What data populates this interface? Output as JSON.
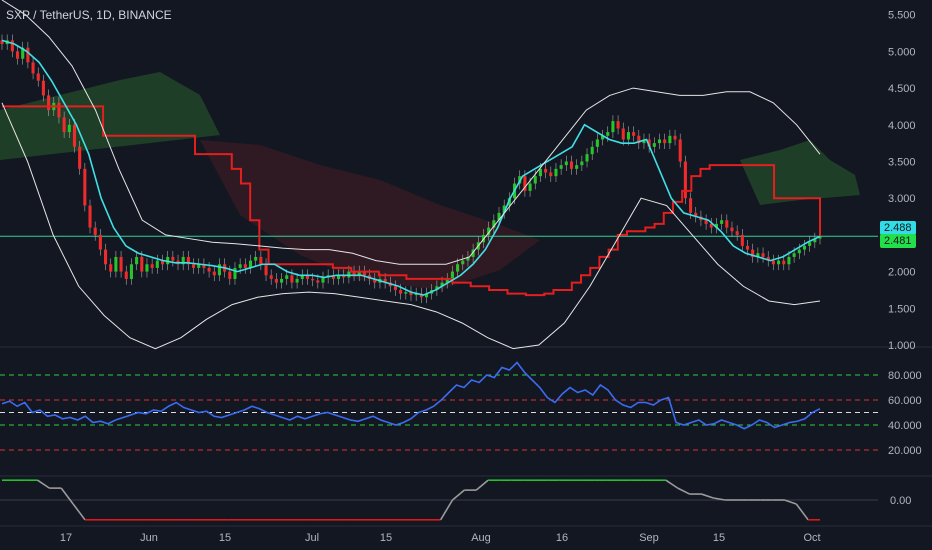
{
  "header": {
    "symbol_title": "SXP / TetherUS, 1D, BINANCE"
  },
  "colors": {
    "background": "#131722",
    "grid": "#1e222d",
    "up": "#26c52a",
    "down": "#ef2b2b",
    "kijun": "#e31f1f",
    "tenkan": "#3fe0e6",
    "bands": "#e6e6e6",
    "rsi": "#3b6bf0",
    "cloud_green": "#2f6e2f",
    "cloud_red": "#5a1d22",
    "osc_green": "#22c22a",
    "osc_red": "#e01818",
    "osc_gray": "#9a9a9a",
    "level_green": "#2ecc40",
    "level_red": "#e03030",
    "level_white": "#dddddd",
    "price_line": "#2fd39a",
    "badge_cyan": "#33dde6",
    "badge_green": "#22e04a"
  },
  "x_axis": {
    "labels": [
      "17",
      "Jun",
      "15",
      "Jul",
      "15",
      "Aug",
      "16",
      "Sep",
      "15",
      "Oct"
    ]
  },
  "price_axis": {
    "labels": [
      "5.500",
      "5.000",
      "4.500",
      "4.000",
      "3.500",
      "3.000",
      "2.000",
      "1.500",
      "1.000"
    ]
  },
  "rsi_axis": {
    "labels": [
      "80.000",
      "60.000",
      "40.000",
      "20.000"
    ]
  },
  "osc_axis": {
    "labels": [
      "0.00"
    ]
  },
  "price_badges": {
    "upper": "2.488",
    "lower": "2.481"
  },
  "chart_data": [
    {
      "type": "candlestick",
      "title": "SXP / TetherUS, 1D, BINANCE",
      "ylim": [
        1.0,
        5.7
      ],
      "current_price": 2.481,
      "marker_price": 2.488,
      "series": [
        {
          "name": "",
          "kind": "ohlc-close",
          "values": [
            5.1,
            5.15,
            5.0,
            4.9,
            5.05,
            4.85,
            4.7,
            4.6,
            4.4,
            4.2,
            4.3,
            4.1,
            3.9,
            4.0,
            3.7,
            3.4,
            2.9,
            2.6,
            2.5,
            2.3,
            2.1,
            2.0,
            2.2,
            2.0,
            1.9,
            2.1,
            2.2,
            2.0,
            2.1,
            2.05,
            2.15,
            2.1,
            2.2,
            2.15,
            2.1,
            2.2,
            2.1,
            2.05,
            2.1,
            2.05,
            2.0,
            1.95,
            2.1,
            2.0,
            1.9,
            2.05,
            2.1,
            2.05,
            2.15,
            2.2,
            2.1,
            1.95,
            1.9,
            1.85,
            1.9,
            1.95,
            1.85,
            1.9,
            1.95,
            1.9,
            1.88,
            1.85,
            1.92,
            1.95,
            1.9,
            1.95,
            1.92,
            2.0,
            1.95,
            2.0,
            1.95,
            1.9,
            1.85,
            1.9,
            1.85,
            1.8,
            1.75,
            1.7,
            1.72,
            1.68,
            1.7,
            1.65,
            1.7,
            1.75,
            1.8,
            1.85,
            1.9,
            2.0,
            2.1,
            2.15,
            2.2,
            2.3,
            2.4,
            2.5,
            2.6,
            2.7,
            2.8,
            2.9,
            3.0,
            3.2,
            3.3,
            3.1,
            3.2,
            3.3,
            3.4,
            3.35,
            3.3,
            3.4,
            3.45,
            3.5,
            3.4,
            3.45,
            3.5,
            3.6,
            3.7,
            3.8,
            3.85,
            3.9,
            4.05,
            3.95,
            3.8,
            3.9,
            3.85,
            3.75,
            3.8,
            3.7,
            3.75,
            3.8,
            3.75,
            3.85,
            3.8,
            3.5,
            3.0,
            2.8,
            2.75,
            2.7,
            2.65,
            2.6,
            2.65,
            2.7,
            2.6,
            2.55,
            2.5,
            2.35,
            2.3,
            2.2,
            2.25,
            2.2,
            2.15,
            2.1,
            2.15,
            2.1,
            2.2,
            2.25,
            2.3,
            2.35,
            2.4,
            2.45,
            2.481
          ]
        },
        {
          "name": "",
          "kind": "kijun",
          "values": [
            4.25,
            4.25,
            4.25,
            4.25,
            4.25,
            4.25,
            4.25,
            4.25,
            4.25,
            4.25,
            4.25,
            3.85,
            3.85,
            3.85,
            3.85,
            3.85,
            3.85,
            3.85,
            3.85,
            3.85,
            3.85,
            3.6,
            3.6,
            3.6,
            3.6,
            3.4,
            3.2,
            2.7,
            2.3,
            2.1,
            2.1,
            2.1,
            2.1,
            2.1,
            2.1,
            2.1,
            2.05,
            2.05,
            2.0,
            2.0,
            2.0,
            1.95,
            1.95,
            1.95,
            1.9,
            1.9,
            1.9,
            1.9,
            1.9,
            1.85,
            1.85,
            1.8,
            1.8,
            1.75,
            1.75,
            1.7,
            1.7,
            1.68,
            1.68,
            1.7,
            1.75,
            1.75,
            1.85,
            1.95,
            2.05,
            2.2,
            2.3,
            2.5,
            2.55,
            2.55,
            2.6,
            2.65,
            2.8,
            2.95,
            3.1,
            3.3,
            3.4,
            3.45,
            3.45,
            3.45,
            3.45,
            3.45,
            3.45,
            3.45,
            3.0,
            3.0,
            3.0,
            3.0,
            3.0,
            2.481
          ]
        },
        {
          "name": "",
          "kind": "tenkan",
          "values": [
            5.15,
            5.1,
            5.0,
            4.85,
            4.6,
            4.3,
            4.0,
            3.6,
            3.0,
            2.6,
            2.35,
            2.25,
            2.2,
            2.15,
            2.12,
            2.12,
            2.1,
            2.08,
            2.05,
            2.0,
            2.05,
            2.1,
            2.1,
            2.0,
            1.95,
            1.95,
            1.92,
            1.95,
            1.95,
            1.95,
            1.9,
            1.85,
            1.8,
            1.72,
            1.68,
            1.75,
            1.85,
            1.95,
            2.1,
            2.3,
            2.6,
            3.0,
            3.3,
            3.4,
            3.5,
            3.6,
            3.7,
            4.0,
            3.9,
            3.8,
            3.75,
            3.75,
            3.8,
            3.4,
            3.0,
            2.8,
            2.75,
            2.7,
            2.55,
            2.35,
            2.25,
            2.2,
            2.15,
            2.2,
            2.3,
            2.4,
            2.481
          ]
        },
        {
          "name": "",
          "kind": "bollinger-upper",
          "values": [
            5.7,
            5.5,
            5.2,
            4.8,
            4.2,
            3.4,
            2.7,
            2.5,
            2.45,
            2.4,
            2.38,
            2.35,
            2.32,
            2.3,
            2.3,
            2.25,
            2.15,
            2.1,
            2.1,
            2.1,
            2.2,
            2.6,
            3.0,
            3.4,
            3.8,
            4.2,
            4.4,
            4.5,
            4.45,
            4.4,
            4.4,
            4.45,
            4.45,
            4.3,
            4.0,
            3.6
          ]
        },
        {
          "name": "",
          "kind": "bollinger-lower",
          "values": [
            4.3,
            3.5,
            2.5,
            1.8,
            1.4,
            1.1,
            0.95,
            1.1,
            1.35,
            1.55,
            1.65,
            1.7,
            1.72,
            1.7,
            1.65,
            1.6,
            1.55,
            1.45,
            1.3,
            1.1,
            0.95,
            1.0,
            1.3,
            1.8,
            2.4,
            3.0,
            2.9,
            2.5,
            2.1,
            1.8,
            1.6,
            1.55,
            1.6
          ]
        }
      ]
    },
    {
      "type": "line",
      "ylim": [
        0,
        100
      ],
      "levels": [
        80,
        60,
        50,
        40,
        20
      ],
      "series": [
        {
          "name": "",
          "values": [
            57,
            59,
            55,
            58,
            50,
            52,
            47,
            48,
            45,
            46,
            44,
            47,
            42,
            43,
            41,
            44,
            46,
            48,
            50,
            49,
            52,
            51,
            55,
            58,
            54,
            52,
            50,
            51,
            47,
            46,
            48,
            50,
            52,
            55,
            53,
            50,
            48,
            46,
            44,
            47,
            45,
            47,
            49,
            50,
            48,
            46,
            44,
            43,
            45,
            47,
            44,
            42,
            40,
            42,
            45,
            50,
            52,
            55,
            60,
            66,
            72,
            70,
            76,
            74,
            80,
            78,
            86,
            84,
            90,
            82,
            76,
            70,
            62,
            58,
            65,
            70,
            66,
            68,
            64,
            72,
            68,
            60,
            56,
            54,
            58,
            58,
            56,
            60,
            62,
            42,
            40,
            42,
            44,
            40,
            41,
            44,
            42,
            40,
            37,
            40,
            44,
            42,
            38,
            40,
            42,
            43,
            45,
            50,
            53
          ]
        }
      ]
    },
    {
      "type": "line",
      "ylim": [
        -1,
        1
      ],
      "levels": [
        0
      ],
      "series": [
        {
          "name": "",
          "values": [
            1,
            1,
            1,
            1,
            0.6,
            0.6,
            -0.2,
            -1,
            -1,
            -1,
            -1,
            -1,
            -1,
            -1,
            -1,
            -1,
            -1,
            -1,
            -1,
            -1,
            -1,
            -1,
            -1,
            -1,
            -1,
            -1,
            -1,
            -1,
            -1,
            -1,
            -1,
            -1,
            -1,
            -1,
            -1,
            -1,
            -1,
            -1,
            0.0,
            0.5,
            0.5,
            1,
            1,
            1,
            1,
            1,
            1,
            1,
            1,
            1,
            1,
            1,
            1,
            1,
            1,
            1,
            1,
            0.6,
            0.3,
            0.3,
            0.1,
            0.0,
            0.0,
            0.0,
            0.0,
            0.0,
            0.0,
            -0.2,
            -1,
            -1
          ]
        }
      ]
    }
  ]
}
